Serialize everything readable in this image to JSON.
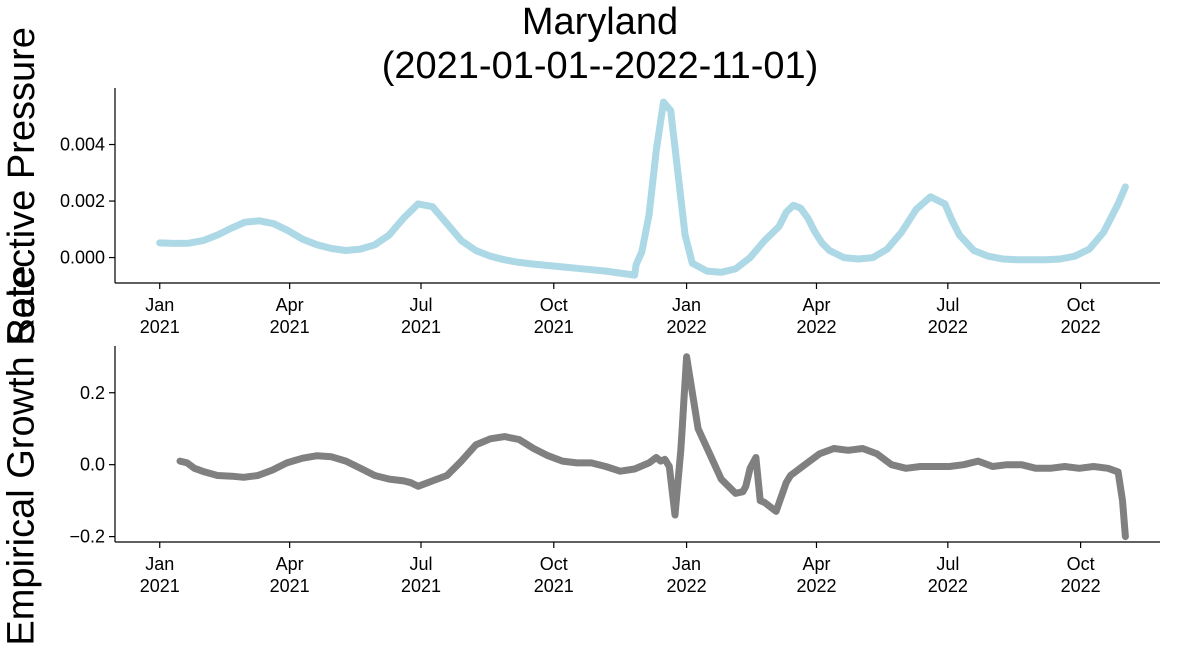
{
  "title_line1": "Maryland",
  "title_line2": "(2021-01-01--2022-11-01)",
  "chart_data": [
    {
      "type": "line",
      "ylabel": "Selective Pressure",
      "ylim": [
        -0.0009,
        0.006
      ],
      "yticks": [
        0.0,
        0.002,
        0.004
      ],
      "ytick_labels": [
        "0.000",
        "0.002",
        "0.004"
      ],
      "xlim": [
        "2020-12-01",
        "2022-11-25"
      ],
      "xticks": [
        "2021-01-01",
        "2021-04-01",
        "2021-07-01",
        "2021-10-01",
        "2022-01-01",
        "2022-04-01",
        "2022-07-01",
        "2022-10-01"
      ],
      "xtick_labels": [
        [
          "Jan",
          "2021"
        ],
        [
          "Apr",
          "2021"
        ],
        [
          "Jul",
          "2021"
        ],
        [
          "Oct",
          "2021"
        ],
        [
          "Jan",
          "2022"
        ],
        [
          "Apr",
          "2022"
        ],
        [
          "Jul",
          "2022"
        ],
        [
          "Oct",
          "2022"
        ]
      ],
      "grid": false,
      "series": [
        {
          "color": "#add8e6",
          "x": [
            "2021-01-01",
            "2021-01-11",
            "2021-01-21",
            "2021-01-31",
            "2021-02-10",
            "2021-02-20",
            "2021-03-01",
            "2021-03-11",
            "2021-03-21",
            "2021-03-31",
            "2021-04-10",
            "2021-04-20",
            "2021-04-30",
            "2021-05-10",
            "2021-05-20",
            "2021-05-30",
            "2021-06-09",
            "2021-06-19",
            "2021-06-29",
            "2021-07-09",
            "2021-07-19",
            "2021-07-29",
            "2021-08-08",
            "2021-08-18",
            "2021-08-28",
            "2021-09-07",
            "2021-09-17",
            "2021-09-27",
            "2021-10-07",
            "2021-10-17",
            "2021-10-27",
            "2021-11-06",
            "2021-11-16",
            "2021-11-26",
            "2021-11-27",
            "2021-12-01",
            "2021-12-06",
            "2021-12-11",
            "2021-12-16",
            "2021-12-21",
            "2021-12-26",
            "2021-12-31",
            "2022-01-05",
            "2022-01-15",
            "2022-01-25",
            "2022-02-04",
            "2022-02-14",
            "2022-02-24",
            "2022-03-06",
            "2022-03-11",
            "2022-03-16",
            "2022-03-21",
            "2022-03-26",
            "2022-03-31",
            "2022-04-05",
            "2022-04-10",
            "2022-04-20",
            "2022-04-30",
            "2022-05-10",
            "2022-05-20",
            "2022-05-30",
            "2022-06-09",
            "2022-06-19",
            "2022-06-29",
            "2022-07-04",
            "2022-07-09",
            "2022-07-19",
            "2022-07-29",
            "2022-08-08",
            "2022-08-18",
            "2022-08-28",
            "2022-09-07",
            "2022-09-17",
            "2022-09-27",
            "2022-10-07",
            "2022-10-17",
            "2022-10-27",
            "2022-11-01"
          ],
          "values": [
            0.00052,
            0.0005,
            0.00051,
            0.0006,
            0.0008,
            0.00105,
            0.00125,
            0.0013,
            0.0012,
            0.00095,
            0.00065,
            0.00045,
            0.00032,
            0.00025,
            0.0003,
            0.00045,
            0.0008,
            0.0014,
            0.0019,
            0.0018,
            0.0012,
            0.0006,
            0.00025,
            5e-05,
            -8e-05,
            -0.00017,
            -0.00023,
            -0.00028,
            -0.00033,
            -0.00038,
            -0.00043,
            -0.00048,
            -0.00055,
            -0.00062,
            -0.00025,
            0.0002,
            0.0015,
            0.0038,
            0.0055,
            0.0052,
            0.003,
            0.0008,
            -0.0002,
            -0.00048,
            -0.00052,
            -0.0004,
            0.0,
            0.0006,
            0.0011,
            0.0016,
            0.00185,
            0.00175,
            0.0014,
            0.0009,
            0.0005,
            0.00025,
            0.0,
            -5e-05,
            0.0,
            0.0003,
            0.0009,
            0.0017,
            0.00215,
            0.0019,
            0.0013,
            0.0008,
            0.00025,
            5e-05,
            -5e-05,
            -8e-05,
            -8e-05,
            -8e-05,
            -5e-05,
            5e-05,
            0.0003,
            0.0009,
            0.0019,
            0.0025
          ]
        }
      ]
    },
    {
      "type": "line",
      "ylabel": "Empirical Growth Rate",
      "ylim": [
        -0.215,
        0.33
      ],
      "yticks": [
        -0.2,
        0.0,
        0.2
      ],
      "ytick_labels": [
        "−0.2",
        "0.0",
        "0.2"
      ],
      "xlim": [
        "2020-12-01",
        "2022-11-25"
      ],
      "xticks": [
        "2021-01-01",
        "2021-04-01",
        "2021-07-01",
        "2021-10-01",
        "2022-01-01",
        "2022-04-01",
        "2022-07-01",
        "2022-10-01"
      ],
      "xtick_labels": [
        [
          "Jan",
          "2021"
        ],
        [
          "Apr",
          "2021"
        ],
        [
          "Jul",
          "2021"
        ],
        [
          "Oct",
          "2021"
        ],
        [
          "Jan",
          "2022"
        ],
        [
          "Apr",
          "2022"
        ],
        [
          "Jul",
          "2022"
        ],
        [
          "Oct",
          "2022"
        ]
      ],
      "grid": false,
      "series": [
        {
          "color": "#808080",
          "x": [
            "2021-01-15",
            "2021-01-20",
            "2021-01-25",
            "2021-02-01",
            "2021-02-10",
            "2021-02-20",
            "2021-02-28",
            "2021-03-10",
            "2021-03-20",
            "2021-03-30",
            "2021-04-10",
            "2021-04-20",
            "2021-04-30",
            "2021-05-10",
            "2021-05-20",
            "2021-05-30",
            "2021-06-09",
            "2021-06-19",
            "2021-06-24",
            "2021-06-29",
            "2021-07-09",
            "2021-07-19",
            "2021-07-29",
            "2021-08-08",
            "2021-08-18",
            "2021-08-28",
            "2021-09-07",
            "2021-09-17",
            "2021-09-27",
            "2021-10-07",
            "2021-10-17",
            "2021-10-27",
            "2021-11-06",
            "2021-11-16",
            "2021-11-26",
            "2021-12-06",
            "2021-12-11",
            "2021-12-14",
            "2021-12-17",
            "2021-12-20",
            "2021-12-24",
            "2021-12-28",
            "2021-12-29",
            "2021-12-30",
            "2022-01-01",
            "2022-01-09",
            "2022-01-17",
            "2022-01-25",
            "2022-02-04",
            "2022-02-09",
            "2022-02-11",
            "2022-02-14",
            "2022-02-18",
            "2022-02-21",
            "2022-02-24",
            "2022-03-04",
            "2022-03-11",
            "2022-03-14",
            "2022-03-24",
            "2022-04-03",
            "2022-04-13",
            "2022-04-23",
            "2022-05-03",
            "2022-05-13",
            "2022-05-23",
            "2022-06-02",
            "2022-06-12",
            "2022-06-22",
            "2022-07-02",
            "2022-07-12",
            "2022-07-22",
            "2022-08-01",
            "2022-08-11",
            "2022-08-21",
            "2022-08-31",
            "2022-09-10",
            "2022-09-20",
            "2022-09-30",
            "2022-10-10",
            "2022-10-20",
            "2022-10-27",
            "2022-10-30",
            "2022-11-01"
          ],
          "values": [
            0.01,
            0.005,
            -0.01,
            -0.02,
            -0.03,
            -0.032,
            -0.035,
            -0.03,
            -0.015,
            0.005,
            0.018,
            0.025,
            0.022,
            0.01,
            -0.01,
            -0.03,
            -0.04,
            -0.045,
            -0.05,
            -0.06,
            -0.045,
            -0.03,
            0.01,
            0.055,
            0.072,
            0.078,
            0.07,
            0.045,
            0.025,
            0.01,
            0.005,
            0.005,
            -0.005,
            -0.018,
            -0.012,
            0.005,
            0.02,
            0.01,
            0.015,
            -0.005,
            -0.14,
            0.04,
            0.1,
            0.17,
            0.3,
            0.1,
            0.03,
            -0.04,
            -0.08,
            -0.075,
            -0.06,
            -0.01,
            0.02,
            -0.1,
            -0.105,
            -0.13,
            -0.05,
            -0.03,
            0.0,
            0.03,
            0.045,
            0.04,
            0.045,
            0.03,
            0.0,
            -0.01,
            -0.005,
            -0.005,
            -0.005,
            0.0,
            0.01,
            -0.005,
            0.0,
            0.0,
            -0.01,
            -0.01,
            -0.005,
            -0.01,
            -0.005,
            -0.01,
            -0.02,
            -0.1,
            -0.2
          ]
        }
      ]
    }
  ]
}
